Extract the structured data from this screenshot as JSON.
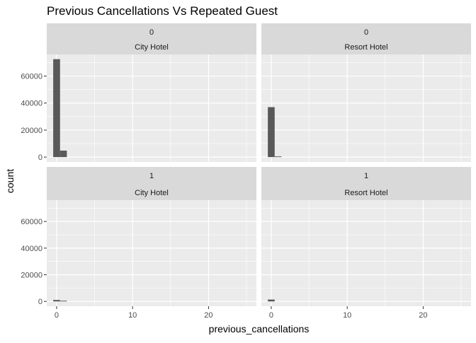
{
  "chart_data": {
    "type": "bar",
    "title": "Previous Cancellations Vs Repeated Guest",
    "xlabel": "previous_cancellations",
    "ylabel": "count",
    "xlim": [
      -1.3,
      26.3
    ],
    "ylim": [
      -3600,
      76000
    ],
    "x_ticks": [
      0,
      10,
      20
    ],
    "y_ticks": [
      0,
      20000,
      40000,
      60000
    ],
    "bin_width": 0.9,
    "bar_color": "#595959",
    "panel_background": "#ebebeb",
    "strip_background": "#d9d9d9",
    "grid": true,
    "facet_rows": [
      "0",
      "1"
    ],
    "facet_cols": [
      "City Hotel",
      "Resort Hotel"
    ],
    "panels": [
      {
        "row": "0",
        "col": "City Hotel",
        "bins": [
          {
            "x": 0,
            "count": 72500
          },
          {
            "x": 0.9,
            "count": 4800
          }
        ]
      },
      {
        "row": "0",
        "col": "Resort Hotel",
        "bins": [
          {
            "x": 0,
            "count": 37000
          },
          {
            "x": 0.9,
            "count": 500
          }
        ]
      },
      {
        "row": "1",
        "col": "City Hotel",
        "bins": [
          {
            "x": 0,
            "count": 1100
          },
          {
            "x": 0.9,
            "count": 500
          }
        ]
      },
      {
        "row": "1",
        "col": "Resort Hotel",
        "bins": [
          {
            "x": 0,
            "count": 1400
          }
        ]
      }
    ]
  }
}
